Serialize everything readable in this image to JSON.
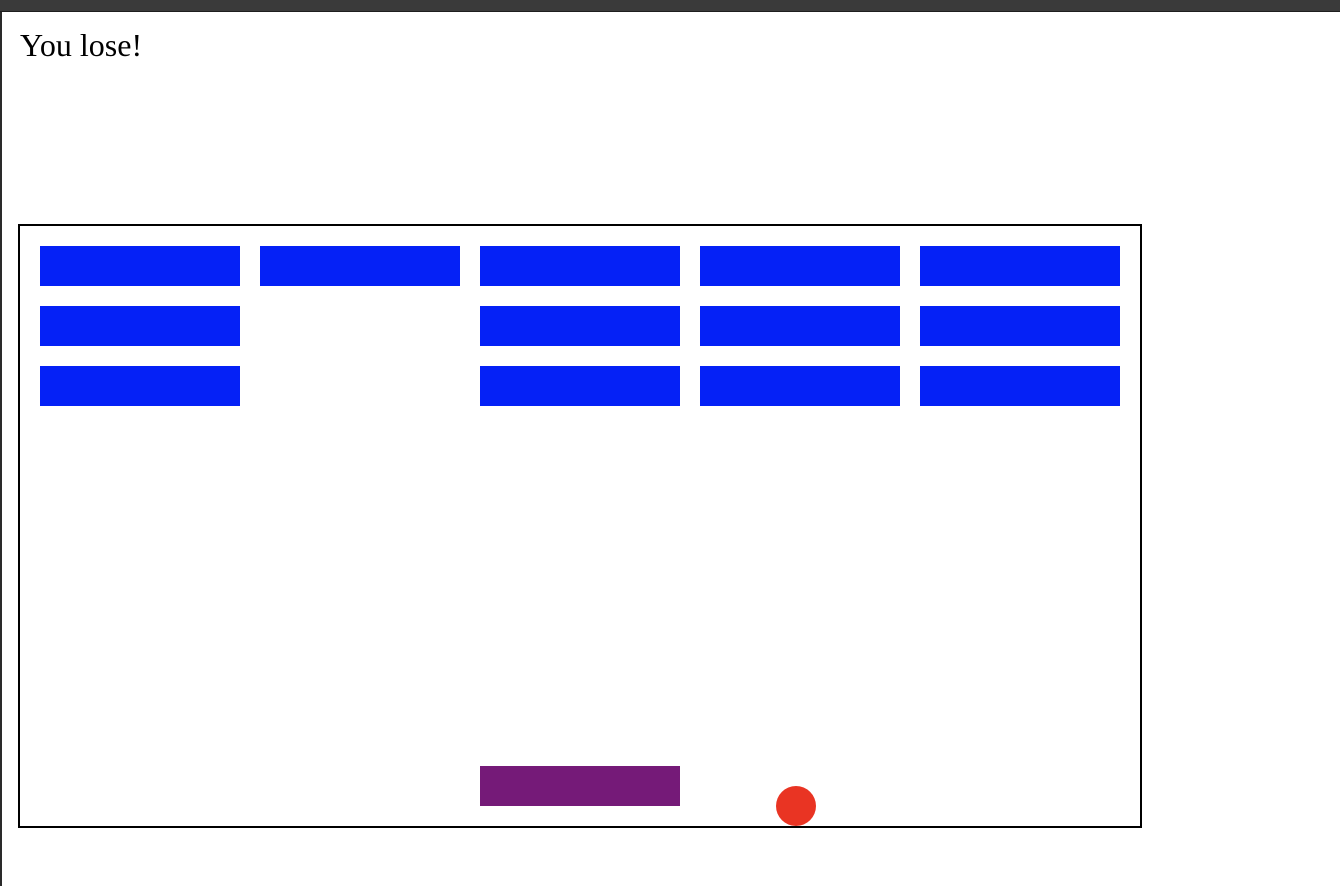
{
  "status_message": "You lose!",
  "colors": {
    "brick": "#0521f6",
    "paddle": "#751a78",
    "ball": "#e93423",
    "board_border": "#000000"
  },
  "bricks": [
    {
      "row": 1,
      "col": 1
    },
    {
      "row": 1,
      "col": 2
    },
    {
      "row": 1,
      "col": 3
    },
    {
      "row": 1,
      "col": 4
    },
    {
      "row": 1,
      "col": 5
    },
    {
      "row": 2,
      "col": 1
    },
    {
      "row": 2,
      "col": 3
    },
    {
      "row": 2,
      "col": 4
    },
    {
      "row": 2,
      "col": 5
    },
    {
      "row": 3,
      "col": 1
    },
    {
      "row": 3,
      "col": 3
    },
    {
      "row": 3,
      "col": 4
    },
    {
      "row": 3,
      "col": 5
    }
  ]
}
